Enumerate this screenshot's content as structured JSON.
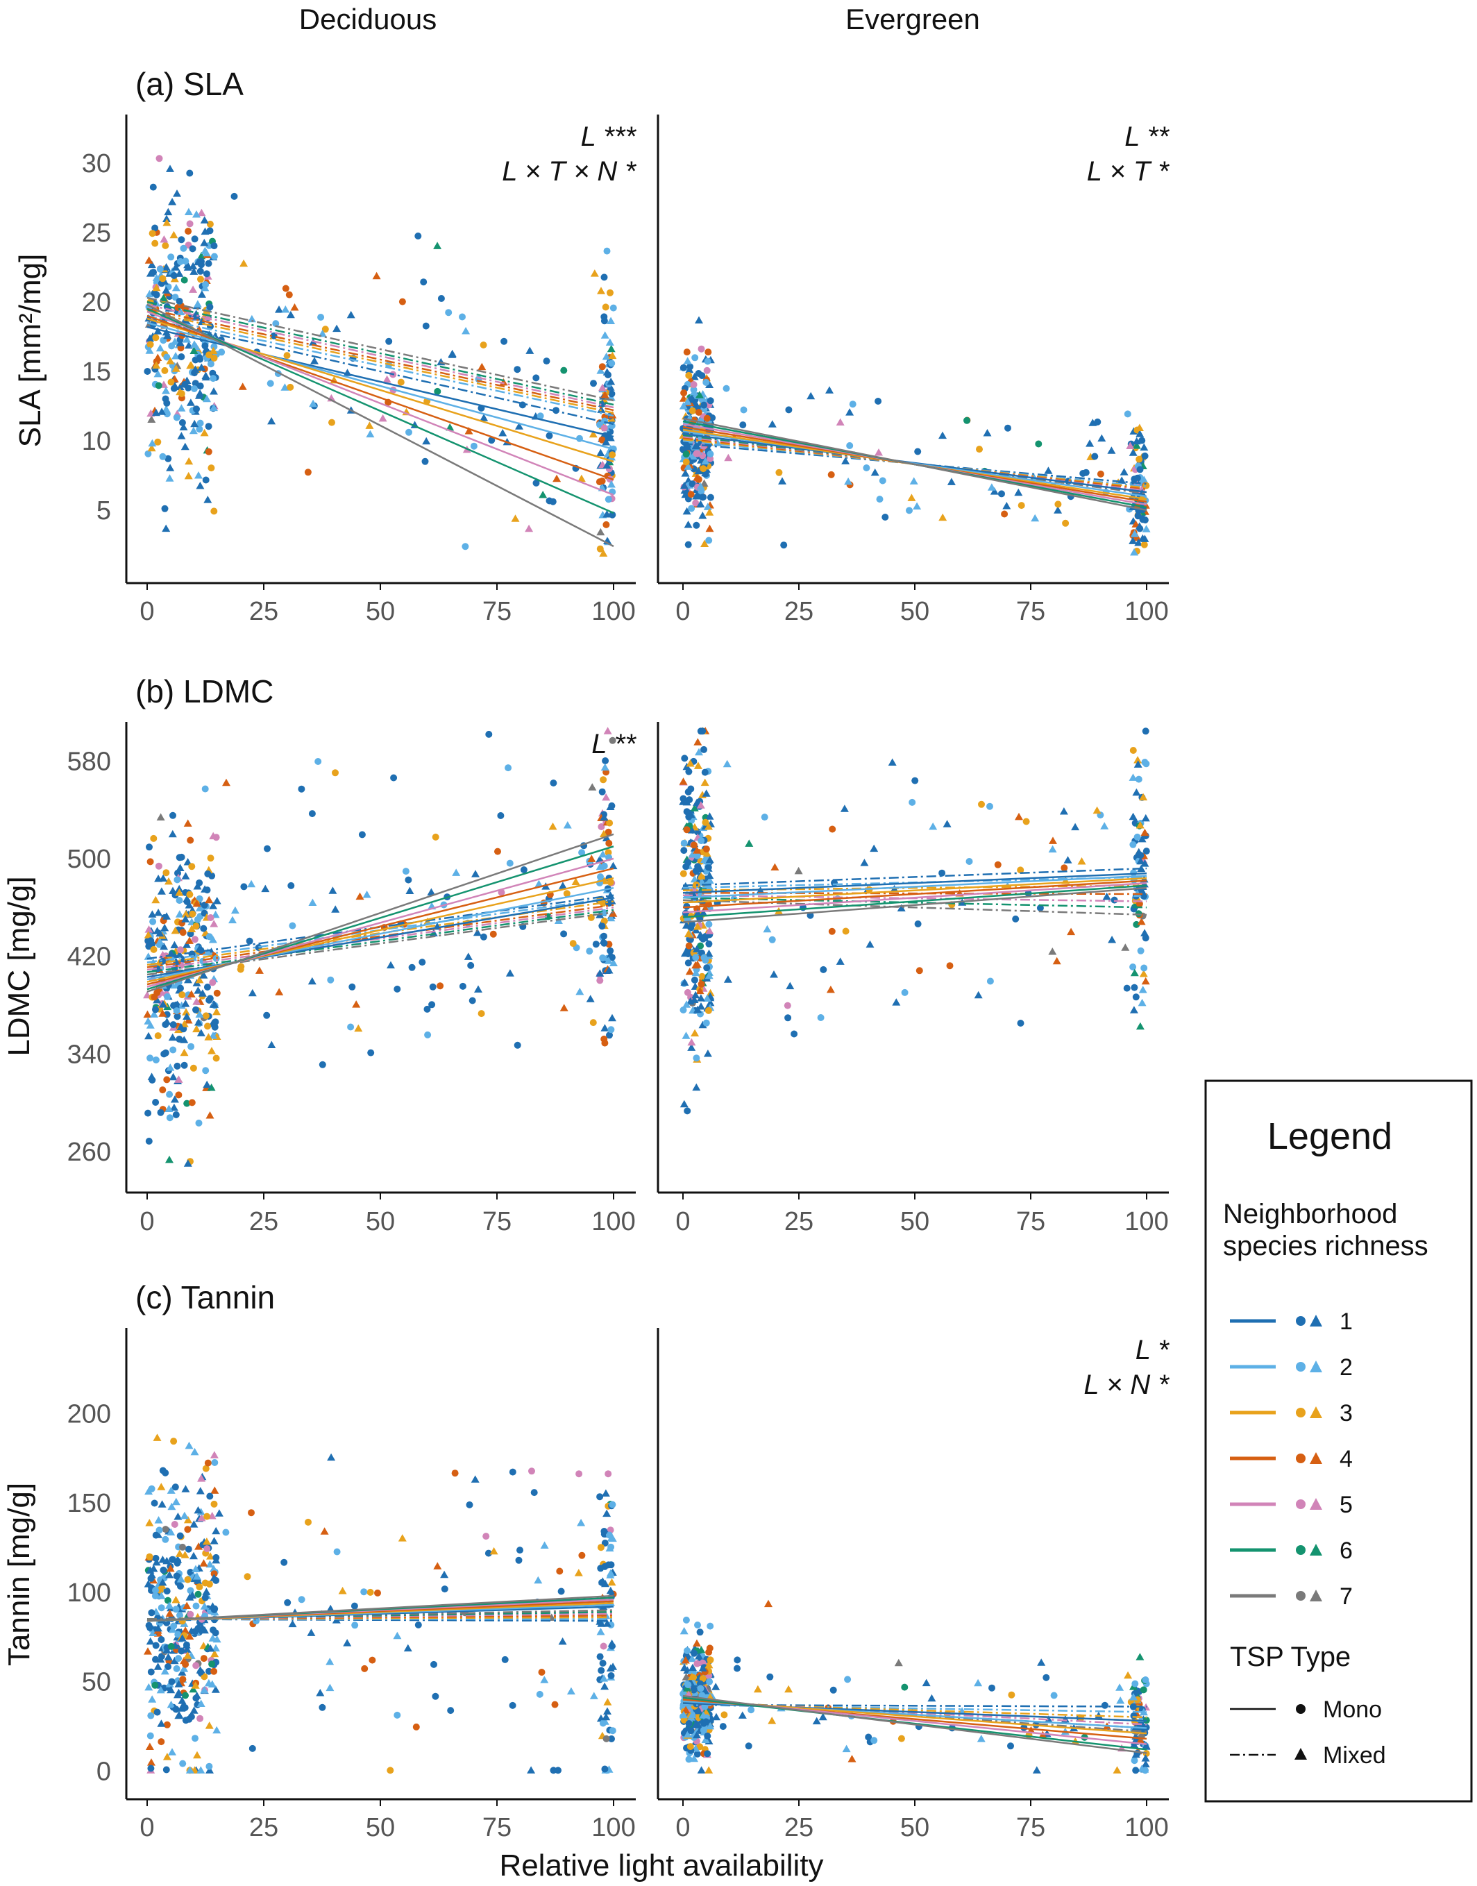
{
  "figure": {
    "column_titles": [
      "Deciduous",
      "Evergreen"
    ],
    "x_label": "Relative light availability",
    "x_ticks": [
      0,
      25,
      50,
      75,
      100
    ]
  },
  "legend": {
    "title": "Legend",
    "richness_title_line1": "Neighborhood",
    "richness_title_line2": "species richness",
    "richness_levels": [
      {
        "label": "1",
        "color": "#1f6fb2"
      },
      {
        "label": "2",
        "color": "#5db0e6"
      },
      {
        "label": "3",
        "color": "#e8a21c"
      },
      {
        "label": "4",
        "color": "#d65f12"
      },
      {
        "label": "5",
        "color": "#d184b8"
      },
      {
        "label": "6",
        "color": "#14936f"
      },
      {
        "label": "7",
        "color": "#7a7a7a"
      }
    ],
    "tsp_title": "TSP Type",
    "tsp_types": [
      {
        "label": "Mono",
        "line": "solid",
        "marker": "circle"
      },
      {
        "label": "Mixed",
        "line": "dot-dash",
        "marker": "triangle"
      }
    ]
  },
  "chart_data": [
    {
      "type": "scatter",
      "title": "(a) SLA",
      "ylabel": "SLA [mm²/mg]",
      "yticks": [
        5,
        10,
        15,
        20,
        25,
        30
      ],
      "ylim": [
        0.5,
        33.5
      ],
      "xlim": [
        0,
        100
      ],
      "panels": [
        {
          "name": "Deciduous",
          "significance": [
            "L ***",
            "L × T × N  *"
          ],
          "lines_mono": [
            [
              18.2,
              10.3
            ],
            [
              18.5,
              9.4
            ],
            [
              18.8,
              8.5
            ],
            [
              19.0,
              7.2
            ],
            [
              19.3,
              6.1
            ],
            [
              19.5,
              4.8
            ],
            [
              19.8,
              2.4
            ]
          ],
          "lines_mixed": [
            [
              18.8,
              11.2
            ],
            [
              19.0,
              11.8
            ],
            [
              19.3,
              12.0
            ],
            [
              19.5,
              12.2
            ],
            [
              19.8,
              12.4
            ],
            [
              20.0,
              12.6
            ],
            [
              20.3,
              12.9
            ]
          ],
          "cloud": {
            "count": 520,
            "mean_start": 18.5,
            "mean_end": 11.0,
            "spread": 4.5,
            "dense_x_max": 15
          }
        },
        {
          "name": "Evergreen",
          "significance": [
            "L **",
            "L × T *"
          ],
          "lines_mono": [
            [
              10.5,
              6.3
            ],
            [
              10.7,
              6.0
            ],
            [
              10.8,
              5.8
            ],
            [
              11.0,
              5.6
            ],
            [
              11.2,
              5.4
            ],
            [
              11.4,
              5.2
            ],
            [
              11.6,
              5.0
            ]
          ],
          "lines_mixed": [
            [
              9.8,
              6.9
            ],
            [
              10.0,
              6.7
            ],
            [
              10.1,
              6.6
            ],
            [
              10.2,
              6.5
            ],
            [
              10.3,
              6.4
            ],
            [
              10.4,
              6.3
            ],
            [
              10.5,
              6.2
            ]
          ],
          "cloud": {
            "count": 420,
            "mean_start": 10.0,
            "mean_end": 6.8,
            "spread": 2.8,
            "dense_x_max": 6
          }
        }
      ]
    },
    {
      "type": "scatter",
      "title": "(b) LDMC",
      "ylabel": "LDMC [mg/g]",
      "yticks": [
        260,
        340,
        420,
        500,
        580
      ],
      "ylim": [
        235,
        612
      ],
      "xlim": [
        0,
        100
      ],
      "panels": [
        {
          "name": "Deciduous",
          "significance": [
            "L  **"
          ],
          "lines_mono": [
            [
              403,
              468
            ],
            [
              401,
              476
            ],
            [
              399,
              484
            ],
            [
              397,
              492
            ],
            [
              395,
              500
            ],
            [
              393,
              510
            ],
            [
              391,
              520
            ]
          ],
          "lines_mixed": [
            [
              418,
              470
            ],
            [
              415,
              468
            ],
            [
              413,
              465
            ],
            [
              411,
              462
            ],
            [
              409,
              460
            ],
            [
              407,
              458
            ],
            [
              405,
              456
            ]
          ],
          "cloud": {
            "count": 520,
            "mean_start": 405,
            "mean_end": 470,
            "spread": 60,
            "dense_x_max": 15
          }
        },
        {
          "name": "Evergreen",
          "significance": [],
          "lines_mono": [
            [
              472,
              488
            ],
            [
              468,
              486
            ],
            [
              464,
              484
            ],
            [
              460,
              482
            ],
            [
              456,
              480
            ],
            [
              452,
              478
            ],
            [
              448,
              476
            ]
          ],
          "lines_mixed": [
            [
              478,
              492
            ],
            [
              476,
              485
            ],
            [
              474,
              478
            ],
            [
              472,
              471
            ],
            [
              470,
              465
            ],
            [
              468,
              460
            ],
            [
              466,
              454
            ]
          ],
          "cloud": {
            "count": 420,
            "mean_start": 465,
            "mean_end": 480,
            "spread": 55,
            "dense_x_max": 6
          }
        }
      ]
    },
    {
      "type": "scatter",
      "title": "(c) Tannin",
      "ylabel": "Tannin [mg/g]",
      "yticks": [
        0,
        50,
        100,
        150,
        200
      ],
      "ylim": [
        -10,
        248
      ],
      "xlim": [
        0,
        100
      ],
      "panels": [
        {
          "name": "Deciduous",
          "significance": [],
          "lines_mono": [
            [
              84,
              92
            ],
            [
              84,
              93
            ],
            [
              84,
              94
            ],
            [
              84,
              95
            ],
            [
              84,
              96
            ],
            [
              84,
              97
            ],
            [
              84,
              98
            ]
          ],
          "lines_mixed": [
            [
              85,
              84
            ],
            [
              85,
              85
            ],
            [
              85,
              86
            ],
            [
              85,
              87
            ],
            [
              85,
              88
            ],
            [
              85,
              89
            ],
            [
              85,
              90
            ]
          ],
          "cloud": {
            "count": 520,
            "mean_start": 85,
            "mean_end": 90,
            "spread": 42,
            "dense_x_max": 15
          }
        },
        {
          "name": "Evergreen",
          "significance": [
            "L *",
            "L × N  *"
          ],
          "lines_mono": [
            [
              38,
              28
            ],
            [
              39,
              24
            ],
            [
              40,
              21
            ],
            [
              40,
              18
            ],
            [
              41,
              15
            ],
            [
              41,
              12
            ],
            [
              42,
              10
            ]
          ],
          "lines_mixed": [
            [
              37,
              36
            ],
            [
              37,
              33
            ],
            [
              38,
              30
            ],
            [
              38,
              28
            ],
            [
              39,
              26
            ],
            [
              39,
              24
            ],
            [
              40,
              22
            ]
          ],
          "cloud": {
            "count": 420,
            "mean_start": 38,
            "mean_end": 28,
            "spread": 16,
            "dense_x_max": 6
          }
        }
      ]
    }
  ]
}
